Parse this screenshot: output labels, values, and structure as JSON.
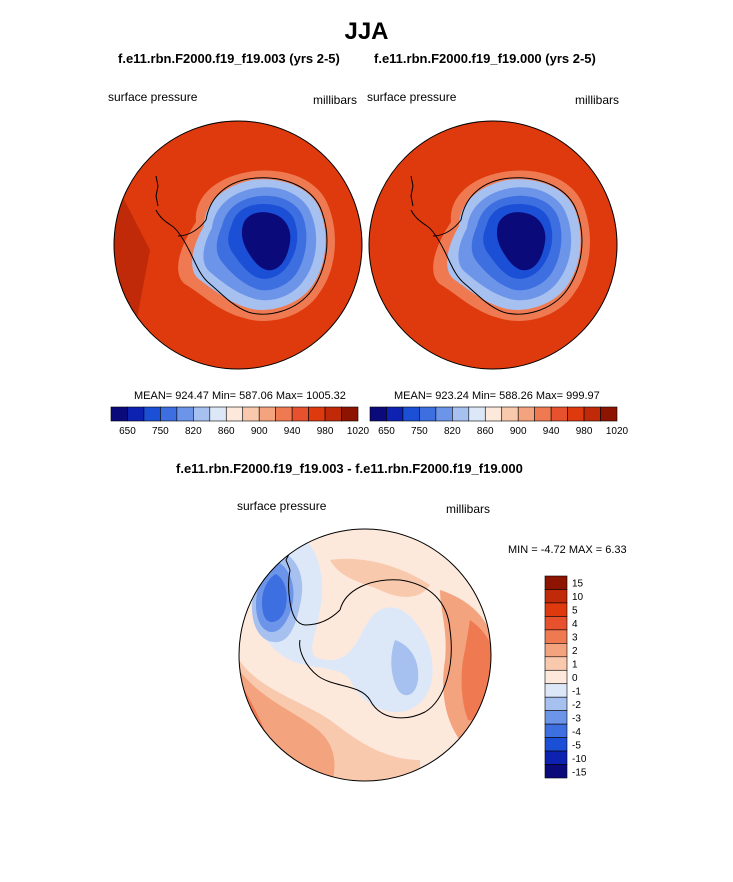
{
  "page": {
    "main_title": "JJA"
  },
  "colors": {
    "scale": [
      "#0a0a7a",
      "#0d22b0",
      "#1a4fd6",
      "#3d6fe0",
      "#6c94e8",
      "#a6c0f0",
      "#dce8f8",
      "#fde8dc",
      "#f9c9ae",
      "#f4a37f",
      "#ef7a52",
      "#e8512d",
      "#de3a0d",
      "#c02a08",
      "#8c1400"
    ],
    "diff_scale": [
      "#0a0a7a",
      "#0d22b0",
      "#1a4fd6",
      "#3d6fe0",
      "#6c94e8",
      "#a6c0f0",
      "#dce8f8",
      "#fde8dc",
      "#f9c9ae",
      "#f4a37f",
      "#ef7a52",
      "#e8512d",
      "#de3a0d",
      "#c02a08",
      "#8c1400"
    ],
    "background_field": "#de3a0d",
    "coast": "#000000"
  },
  "chart_data": [
    {
      "type": "heatmap",
      "projection": "south-polar-stereographic",
      "title": "f.e11.rbn.F2000.f19_f19.003 (yrs 2-5)",
      "variable_label": "surface pressure",
      "units_label": "millibars",
      "stats": {
        "mean": 924.47,
        "min": 587.06,
        "max": 1005.32
      },
      "stats_text": "MEAN= 924.47  Min= 587.06  Max= 1005.32",
      "colorbar": {
        "orientation": "horizontal",
        "tick_labels": [
          "650",
          "750",
          "820",
          "860",
          "900",
          "940",
          "980",
          "1020"
        ]
      }
    },
    {
      "type": "heatmap",
      "projection": "south-polar-stereographic",
      "title": "f.e11.rbn.F2000.f19_f19.000 (yrs 2-5)",
      "variable_label": "surface pressure",
      "units_label": "millibars",
      "stats": {
        "mean": 923.24,
        "min": 588.26,
        "max": 999.97
      },
      "stats_text": "MEAN= 923.24  Min= 588.26  Max= 999.97",
      "colorbar": {
        "orientation": "horizontal",
        "tick_labels": [
          "650",
          "750",
          "820",
          "860",
          "900",
          "940",
          "980",
          "1020"
        ]
      }
    },
    {
      "type": "heatmap",
      "projection": "south-polar-stereographic",
      "title": "f.e11.rbn.F2000.f19_f19.003 - f.e11.rbn.F2000.f19_f19.000",
      "variable_label": "surface pressure",
      "units_label": "millibars",
      "stats": {
        "min": -4.72,
        "max": 6.33
      },
      "stats_text": "MIN =  -4.72 MAX =   6.33",
      "colorbar": {
        "orientation": "vertical",
        "tick_labels": [
          "15",
          "10",
          "5",
          "4",
          "3",
          "2",
          "1",
          "0",
          "-1",
          "-2",
          "-3",
          "-4",
          "-5",
          "-10",
          "-15"
        ]
      }
    }
  ]
}
